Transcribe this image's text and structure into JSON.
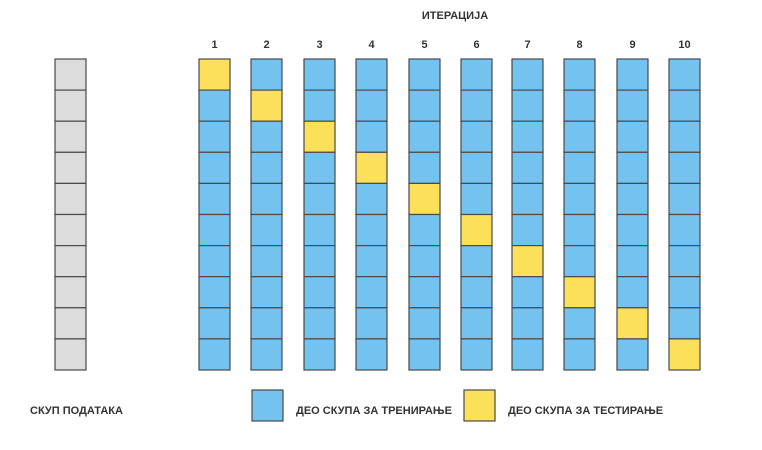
{
  "title": "ИТЕРАЦИЈА",
  "dataset_label": "СКУП ПОДАТАКА",
  "iterations": [
    "1",
    "2",
    "3",
    "4",
    "5",
    "6",
    "7",
    "8",
    "9",
    "10"
  ],
  "folds_per_column": 10,
  "test_fold_by_iteration": [
    1,
    2,
    3,
    4,
    5,
    6,
    7,
    8,
    9,
    10
  ],
  "legend": {
    "train_label": "ДЕО СКУПА ЗА ТРЕНИРАЊЕ",
    "test_label": "ДЕО СКУПА ЗА ТЕСТИРАЊЕ"
  },
  "colors": {
    "dataset": "#dcdcdc",
    "train": "#74c2ef",
    "test": "#fde05a",
    "border": "#4a4a4a",
    "text": "#333333"
  }
}
